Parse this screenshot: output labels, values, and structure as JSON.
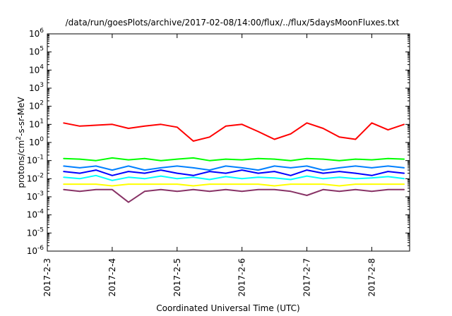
{
  "chart_data": {
    "type": "line",
    "title": "/data/run/goesPlots/archive/2017-02-08/14:00/flux/../flux/5daysMoonFluxes.txt",
    "xlabel": "Coordinated Universal Time (UTC)",
    "ylabel": {
      "base": "protons/cm",
      "sup": "2",
      "rest": "-s-sr-MeV"
    },
    "y_scale": "log",
    "ylim": [
      1e-06,
      1000000.0
    ],
    "xlim": [
      "2017-02-03",
      "2017-02-08 14:00"
    ],
    "grid": false,
    "legend": "none",
    "x_ticks": [
      "2017-2-3",
      "2017-2-4",
      "2017-2-5",
      "2017-2-6",
      "2017-2-7",
      "2017-2-8"
    ],
    "y_ticks": [
      {
        "base": "10",
        "exp": "-6"
      },
      {
        "base": "10",
        "exp": "-5"
      },
      {
        "base": "10",
        "exp": "-4"
      },
      {
        "base": "10",
        "exp": "-3"
      },
      {
        "base": "10",
        "exp": "-2"
      },
      {
        "base": "10",
        "exp": "-1"
      },
      {
        "base": "10",
        "exp": "0"
      },
      {
        "base": "10",
        "exp": "1"
      },
      {
        "base": "10",
        "exp": "2"
      },
      {
        "base": "10",
        "exp": "3"
      },
      {
        "base": "10",
        "exp": "4"
      },
      {
        "base": "10",
        "exp": "5"
      },
      {
        "base": "10",
        "exp": "6"
      }
    ],
    "x": [
      "2017-02-03 06:00",
      "2017-02-03 12:00",
      "2017-02-03 18:00",
      "2017-02-04 00:00",
      "2017-02-04 06:00",
      "2017-02-04 12:00",
      "2017-02-04 18:00",
      "2017-02-05 00:00",
      "2017-02-05 06:00",
      "2017-02-05 12:00",
      "2017-02-05 18:00",
      "2017-02-06 00:00",
      "2017-02-06 06:00",
      "2017-02-06 12:00",
      "2017-02-06 18:00",
      "2017-02-07 00:00",
      "2017-02-07 06:00",
      "2017-02-07 12:00",
      "2017-02-07 18:00",
      "2017-02-08 00:00",
      "2017-02-08 06:00",
      "2017-02-08 12:00"
    ],
    "series": [
      {
        "color": "#ff0000",
        "values": [
          12,
          8,
          9,
          10,
          6,
          8,
          10,
          7,
          1.2,
          2,
          8,
          10,
          4,
          1.5,
          3,
          12,
          6,
          2,
          1.5,
          12,
          5,
          10
        ]
      },
      {
        "color": "#00ff00",
        "values": [
          0.13,
          0.12,
          0.1,
          0.14,
          0.11,
          0.13,
          0.1,
          0.12,
          0.14,
          0.1,
          0.12,
          0.11,
          0.13,
          0.12,
          0.1,
          0.13,
          0.12,
          0.1,
          0.12,
          0.11,
          0.13,
          0.12
        ]
      },
      {
        "color": "#0080ff",
        "values": [
          0.05,
          0.04,
          0.05,
          0.03,
          0.05,
          0.03,
          0.04,
          0.05,
          0.04,
          0.03,
          0.05,
          0.04,
          0.03,
          0.05,
          0.04,
          0.05,
          0.03,
          0.04,
          0.05,
          0.04,
          0.05,
          0.04
        ]
      },
      {
        "color": "#0000ff",
        "values": [
          0.025,
          0.02,
          0.03,
          0.015,
          0.025,
          0.02,
          0.03,
          0.02,
          0.015,
          0.025,
          0.02,
          0.03,
          0.02,
          0.025,
          0.015,
          0.03,
          0.02,
          0.025,
          0.02,
          0.015,
          0.025,
          0.02
        ]
      },
      {
        "color": "#00ffff",
        "values": [
          0.012,
          0.01,
          0.015,
          0.008,
          0.012,
          0.01,
          0.014,
          0.01,
          0.012,
          0.009,
          0.013,
          0.01,
          0.012,
          0.011,
          0.009,
          0.014,
          0.01,
          0.012,
          0.01,
          0.011,
          0.013,
          0.01
        ]
      },
      {
        "color": "#ffff00",
        "values": [
          0.005,
          0.005,
          0.005,
          0.004,
          0.005,
          0.005,
          0.005,
          0.005,
          0.004,
          0.005,
          0.005,
          0.005,
          0.005,
          0.004,
          0.005,
          0.005,
          0.005,
          0.004,
          0.005,
          0.005,
          0.005,
          0.005
        ]
      },
      {
        "color": "#883366",
        "values": [
          0.0025,
          0.002,
          0.0025,
          0.0025,
          0.0005,
          0.002,
          0.0025,
          0.002,
          0.0025,
          0.002,
          0.0025,
          0.002,
          0.0025,
          0.0025,
          0.002,
          0.0012,
          0.0025,
          0.002,
          0.0025,
          0.002,
          0.0025,
          0.0025
        ]
      }
    ]
  }
}
